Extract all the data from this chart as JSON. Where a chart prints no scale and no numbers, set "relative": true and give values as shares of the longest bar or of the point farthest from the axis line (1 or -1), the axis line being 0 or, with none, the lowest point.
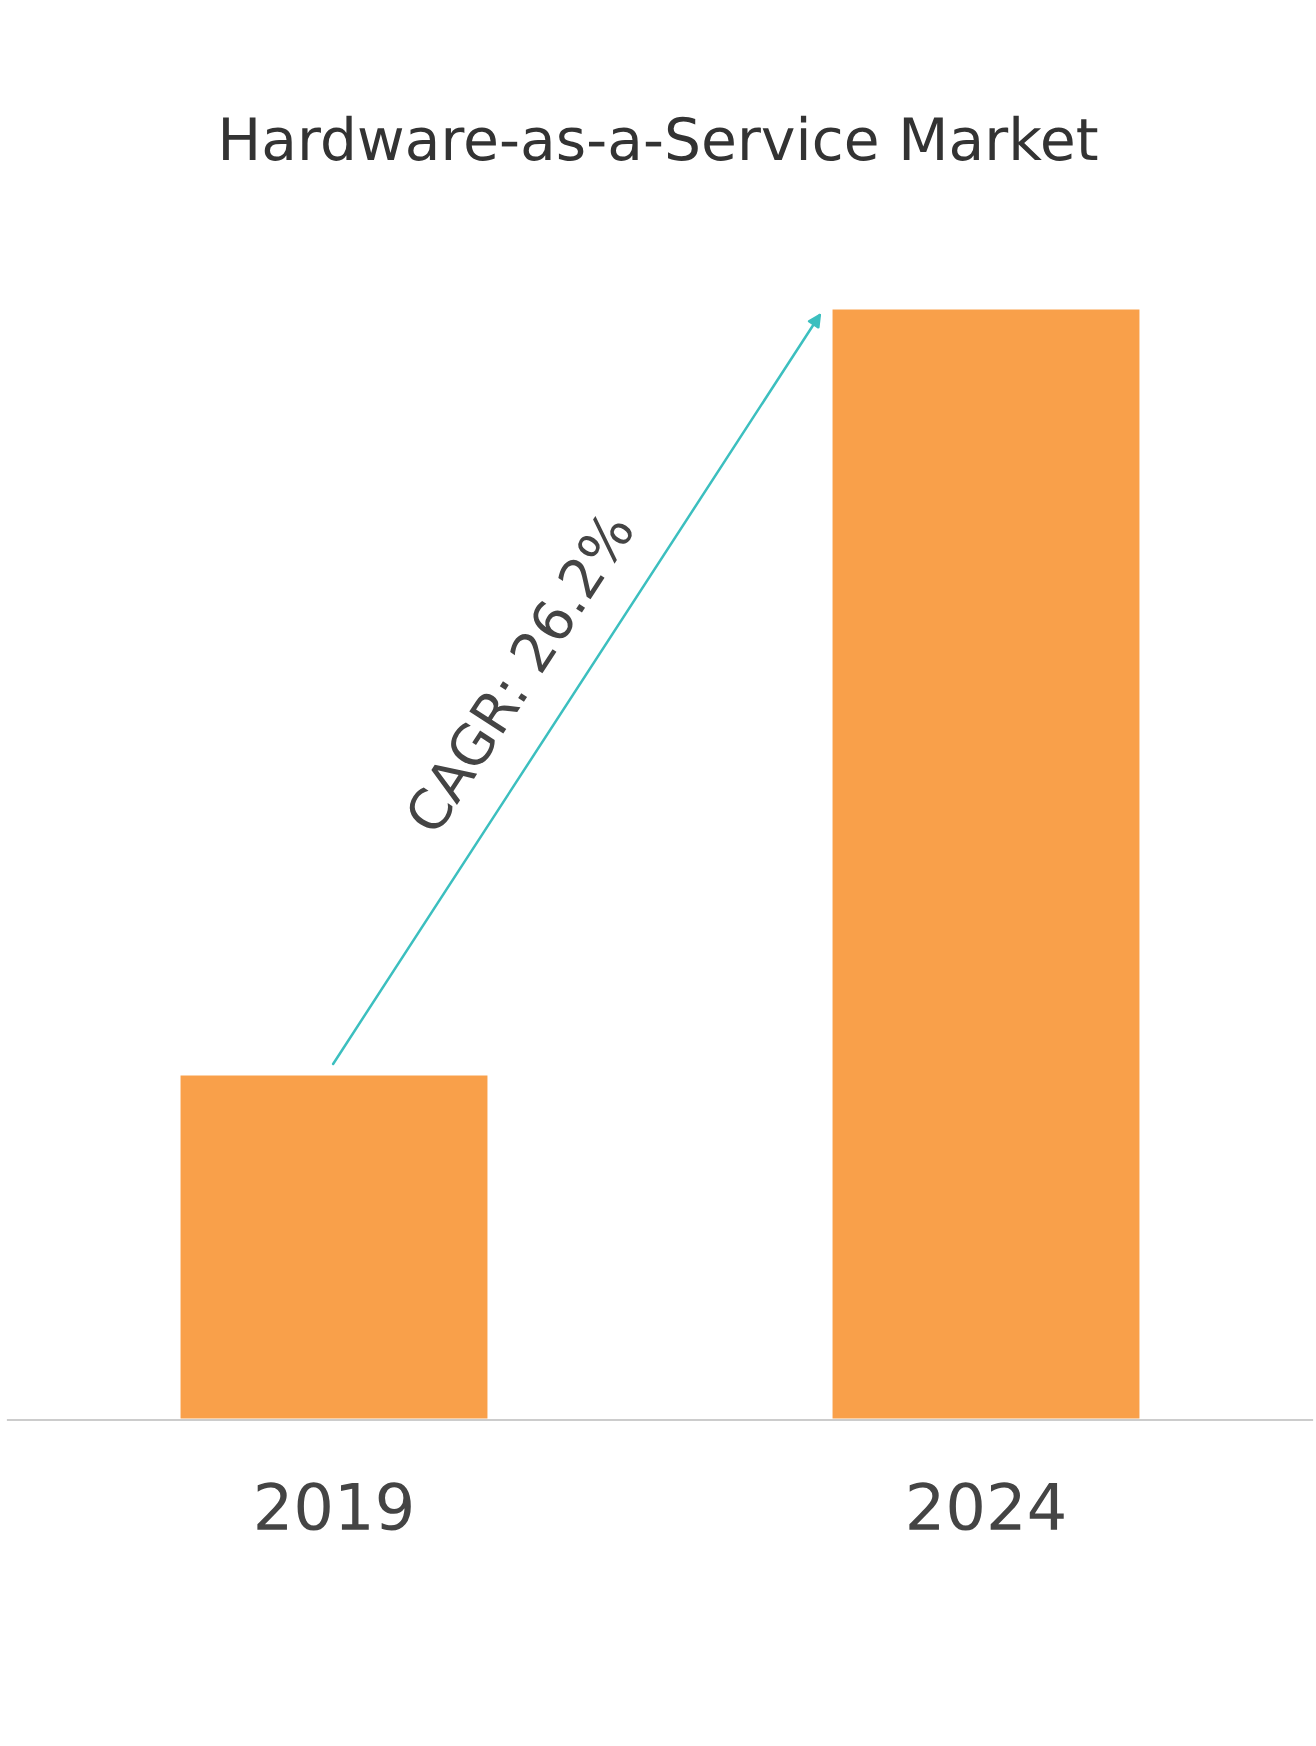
{
  "chart_data": {
    "type": "bar",
    "title": "Hardware-as-a-Service Market",
    "categories": [
      "2019",
      "2024"
    ],
    "values": [
      0.311,
      1
    ],
    "color": "#f9a04a",
    "relative": true,
    "annotations": [
      "CAGR: 26.2%"
    ],
    "grid": false,
    "legend": false
  }
}
